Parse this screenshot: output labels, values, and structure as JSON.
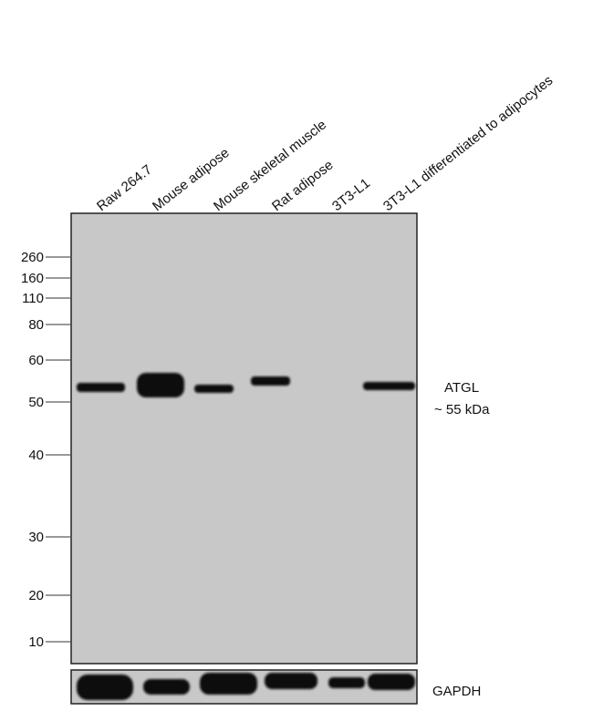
{
  "lanes": [
    "Raw 264.7",
    "Mouse adipose",
    "Mouse skeletal muscle",
    "Rat adipose",
    "3T3-L1",
    "3T3-L1 differentiated to adipocytes"
  ],
  "markers": [
    "260",
    "160",
    "110",
    "80",
    "60",
    "50",
    "40",
    "30",
    "20",
    "10"
  ],
  "band_label": {
    "name": "ATGL",
    "size": "~ 55 kDa"
  },
  "loading_control": "GAPDH"
}
